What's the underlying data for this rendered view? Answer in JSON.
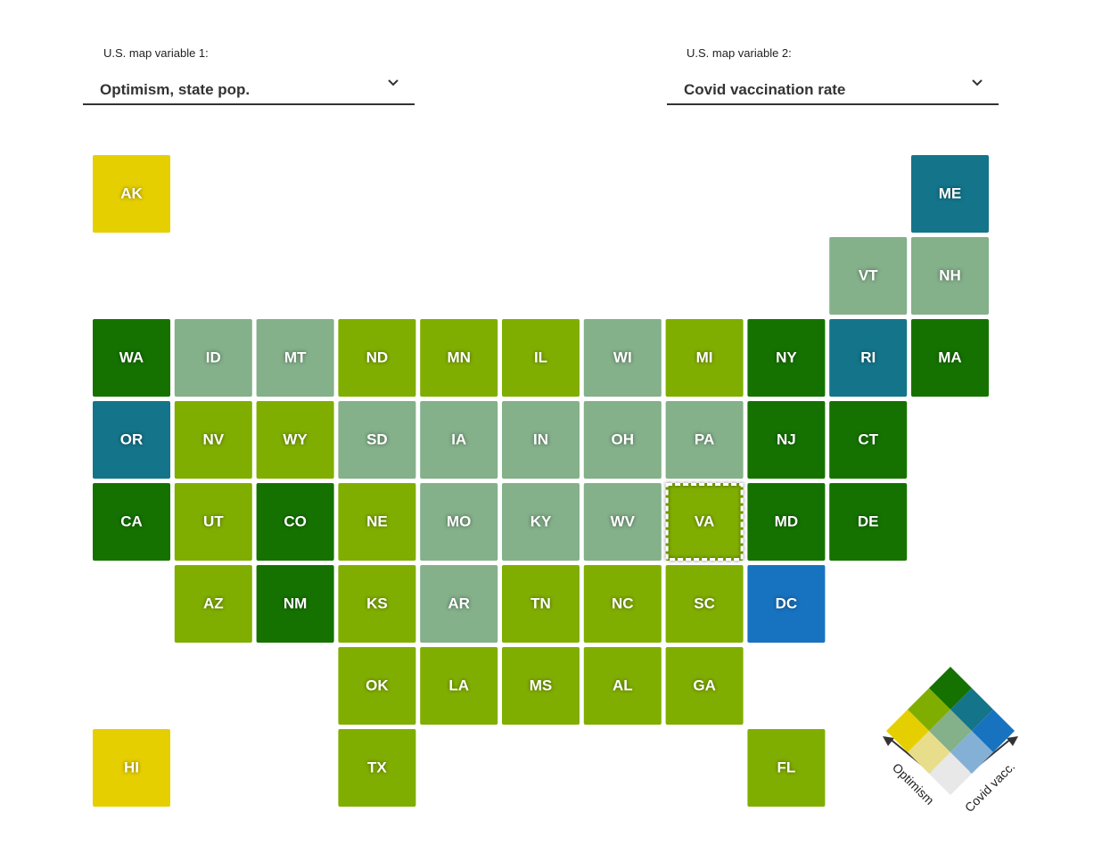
{
  "controls": [
    {
      "label": "U.S. map variable 1:",
      "selected": "Optimism, state pop."
    },
    {
      "label": "U.S. map variable 2:",
      "selected": "Covid vaccination rate"
    }
  ],
  "tiles": [
    {
      "label": "AK",
      "color": "#e6cf00"
    },
    {
      "label": "ME",
      "color": "#14748a"
    },
    {
      "label": "VT",
      "color": "#84b08a"
    },
    {
      "label": "NH",
      "color": "#84b08a"
    },
    {
      "label": "WA",
      "color": "#157200"
    },
    {
      "label": "ID",
      "color": "#84b08a"
    },
    {
      "label": "MT",
      "color": "#84b08a"
    },
    {
      "label": "ND",
      "color": "#80ae00"
    },
    {
      "label": "MN",
      "color": "#80ae00"
    },
    {
      "label": "IL",
      "color": "#80ae00"
    },
    {
      "label": "WI",
      "color": "#84b08a"
    },
    {
      "label": "MI",
      "color": "#80ae00"
    },
    {
      "label": "NY",
      "color": "#157200"
    },
    {
      "label": "RI",
      "color": "#14748a"
    },
    {
      "label": "MA",
      "color": "#157200"
    },
    {
      "label": "OR",
      "color": "#14748a"
    },
    {
      "label": "NV",
      "color": "#80ae00"
    },
    {
      "label": "WY",
      "color": "#80ae00"
    },
    {
      "label": "SD",
      "color": "#84b08a"
    },
    {
      "label": "IA",
      "color": "#84b08a"
    },
    {
      "label": "IN",
      "color": "#84b08a"
    },
    {
      "label": "OH",
      "color": "#84b08a"
    },
    {
      "label": "PA",
      "color": "#84b08a"
    },
    {
      "label": "NJ",
      "color": "#157200"
    },
    {
      "label": "CT",
      "color": "#157200"
    },
    {
      "label": "CA",
      "color": "#157200"
    },
    {
      "label": "UT",
      "color": "#80ae00"
    },
    {
      "label": "CO",
      "color": "#157200"
    },
    {
      "label": "NE",
      "color": "#80ae00"
    },
    {
      "label": "MO",
      "color": "#84b08a"
    },
    {
      "label": "KY",
      "color": "#84b08a"
    },
    {
      "label": "WV",
      "color": "#84b08a"
    },
    {
      "label": "VA",
      "color": "#80ae00",
      "selected": true
    },
    {
      "label": "MD",
      "color": "#157200"
    },
    {
      "label": "DE",
      "color": "#157200"
    },
    {
      "label": "AZ",
      "color": "#80ae00"
    },
    {
      "label": "NM",
      "color": "#157200"
    },
    {
      "label": "KS",
      "color": "#80ae00"
    },
    {
      "label": "AR",
      "color": "#84b08a"
    },
    {
      "label": "TN",
      "color": "#80ae00"
    },
    {
      "label": "NC",
      "color": "#80ae00"
    },
    {
      "label": "SC",
      "color": "#80ae00"
    },
    {
      "label": "DC",
      "color": "#1773c0"
    },
    {
      "label": "OK",
      "color": "#80ae00"
    },
    {
      "label": "LA",
      "color": "#80ae00"
    },
    {
      "label": "MS",
      "color": "#80ae00"
    },
    {
      "label": "AL",
      "color": "#80ae00"
    },
    {
      "label": "GA",
      "color": "#80ae00"
    },
    {
      "label": "HI",
      "color": "#e6cf00"
    },
    {
      "label": "TX",
      "color": "#80ae00"
    },
    {
      "label": "FL",
      "color": "#80ae00"
    }
  ],
  "legend": {
    "x_label": "Optimism",
    "y_label": "Covid vacc."
  }
}
